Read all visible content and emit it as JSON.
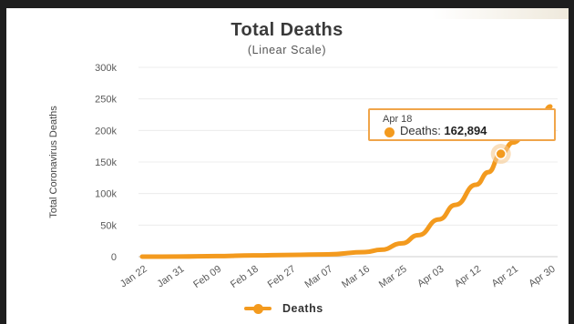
{
  "chart_data": {
    "type": "line",
    "title": "Total Deaths",
    "subtitle": "(Linear Scale)",
    "ylabel": "Total Coronavirus Deaths",
    "xlabel": "",
    "ylim": [
      0,
      300000
    ],
    "yticks": [
      0,
      50000,
      100000,
      150000,
      200000,
      250000,
      300000
    ],
    "ytick_labels": [
      "0",
      "50k",
      "100k",
      "150k",
      "200k",
      "250k",
      "300k"
    ],
    "xtick_labels": [
      "Jan 22",
      "Jan 31",
      "Feb 09",
      "Feb 18",
      "Feb 27",
      "Mar 07",
      "Mar 16",
      "Mar 25",
      "Apr 03",
      "Apr 12",
      "Apr 21",
      "Apr 30"
    ],
    "grid": true,
    "legend": "bottom-center",
    "series": [
      {
        "name": "Deaths",
        "color": "#f39a1e",
        "points": [
          [
            "Jan 22",
            17
          ],
          [
            "Jan 31",
            213
          ],
          [
            "Feb 09",
            908
          ],
          [
            "Feb 18",
            2004
          ],
          [
            "Feb 27",
            2810
          ],
          [
            "Mar 07",
            3580
          ],
          [
            "Mar 16",
            7200
          ],
          [
            "Mar 20",
            11000
          ],
          [
            "Mar 25",
            21000
          ],
          [
            "Mar 29",
            34000
          ],
          [
            "Apr 03",
            59000
          ],
          [
            "Apr 07",
            82000
          ],
          [
            "Apr 12",
            114000
          ],
          [
            "Apr 15",
            134000
          ],
          [
            "Apr 18",
            162894
          ],
          [
            "Apr 21",
            181000
          ],
          [
            "Apr 25",
            206000
          ],
          [
            "Apr 28",
            224000
          ],
          [
            "Apr 30",
            238000
          ]
        ]
      }
    ],
    "highlight": {
      "date": "Apr 18",
      "label": "Deaths: ",
      "value": "162,894"
    }
  }
}
